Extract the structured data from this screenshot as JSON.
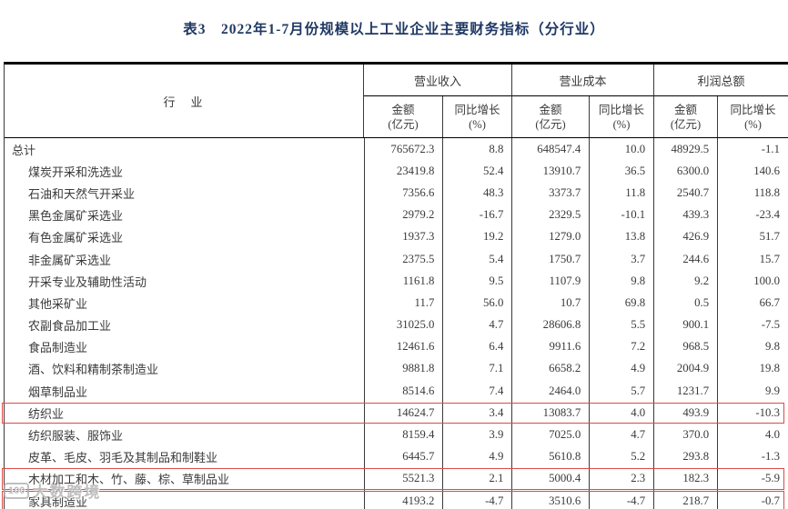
{
  "title": "表3　2022年1-7月份规模以上工业企业主要财务指标（分行业）",
  "colors": {
    "title_navy": "#1f3864",
    "highlight_red": "#dd4b45",
    "border_black": "#000000",
    "text_gray": "#3a3a3a"
  },
  "table": {
    "industry_header": "行　业",
    "groups": {
      "revenue": "营业收入",
      "cost": "营业成本",
      "profit": "利润总额"
    },
    "sub": {
      "amount1": "金额",
      "amount2": "(亿元)",
      "growth1": "同比增长",
      "growth2": "(%)"
    },
    "rows": [
      {
        "industry": "总计",
        "indent": false,
        "highlight": false,
        "values": [
          "765672.3",
          "8.8",
          "648547.4",
          "10.0",
          "48929.5",
          "-1.1"
        ]
      },
      {
        "industry": "煤炭开采和洗选业",
        "indent": true,
        "highlight": false,
        "values": [
          "23419.8",
          "52.4",
          "13910.7",
          "36.5",
          "6300.0",
          "140.6"
        ]
      },
      {
        "industry": "石油和天然气开采业",
        "indent": true,
        "highlight": false,
        "values": [
          "7356.6",
          "48.3",
          "3373.7",
          "11.8",
          "2540.7",
          "118.8"
        ]
      },
      {
        "industry": "黑色金属矿采选业",
        "indent": true,
        "highlight": false,
        "values": [
          "2979.2",
          "-16.7",
          "2329.5",
          "-10.1",
          "439.3",
          "-23.4"
        ]
      },
      {
        "industry": "有色金属矿采选业",
        "indent": true,
        "highlight": false,
        "values": [
          "1937.3",
          "19.2",
          "1279.0",
          "13.8",
          "426.9",
          "51.7"
        ]
      },
      {
        "industry": "非金属矿采选业",
        "indent": true,
        "highlight": false,
        "values": [
          "2375.5",
          "5.4",
          "1750.7",
          "3.7",
          "244.6",
          "15.7"
        ]
      },
      {
        "industry": "开采专业及辅助性活动",
        "indent": true,
        "highlight": false,
        "values": [
          "1161.8",
          "9.5",
          "1107.9",
          "9.8",
          "9.2",
          "100.0"
        ]
      },
      {
        "industry": "其他采矿业",
        "indent": true,
        "highlight": false,
        "values": [
          "11.7",
          "56.0",
          "10.7",
          "69.8",
          "0.5",
          "66.7"
        ]
      },
      {
        "industry": "农副食品加工业",
        "indent": true,
        "highlight": false,
        "values": [
          "31025.0",
          "4.7",
          "28606.8",
          "5.5",
          "900.1",
          "-7.5"
        ]
      },
      {
        "industry": "食品制造业",
        "indent": true,
        "highlight": false,
        "values": [
          "12461.6",
          "6.4",
          "9911.6",
          "7.2",
          "968.5",
          "9.8"
        ]
      },
      {
        "industry": "酒、饮料和精制茶制造业",
        "indent": true,
        "highlight": false,
        "values": [
          "9881.8",
          "7.1",
          "6658.2",
          "4.9",
          "2004.9",
          "19.8"
        ]
      },
      {
        "industry": "烟草制品业",
        "indent": true,
        "highlight": false,
        "values": [
          "8514.6",
          "7.4",
          "2464.0",
          "5.7",
          "1231.7",
          "9.9"
        ]
      },
      {
        "industry": "纺织业",
        "indent": true,
        "highlight": true,
        "values": [
          "14624.7",
          "3.4",
          "13083.7",
          "4.0",
          "493.9",
          "-10.3"
        ]
      },
      {
        "industry": "纺织服装、服饰业",
        "indent": true,
        "highlight": false,
        "values": [
          "8159.4",
          "3.9",
          "7025.0",
          "4.7",
          "370.0",
          "4.0"
        ]
      },
      {
        "industry": "皮革、毛皮、羽毛及其制品和制鞋业",
        "indent": true,
        "highlight": false,
        "values": [
          "6445.7",
          "4.9",
          "5610.8",
          "5.2",
          "293.8",
          "-1.3"
        ]
      },
      {
        "industry": "木材加工和木、竹、藤、棕、草制品业",
        "indent": true,
        "highlight": true,
        "values": [
          "5521.3",
          "2.1",
          "5000.4",
          "2.3",
          "182.3",
          "-5.9"
        ]
      },
      {
        "industry": "家具制造业",
        "indent": true,
        "highlight": true,
        "values": [
          "4193.2",
          "-4.7",
          "3510.6",
          "-4.7",
          "218.7",
          "-0.7"
        ]
      }
    ]
  },
  "watermark": {
    "logo": "100",
    "text": "大数跨境"
  }
}
